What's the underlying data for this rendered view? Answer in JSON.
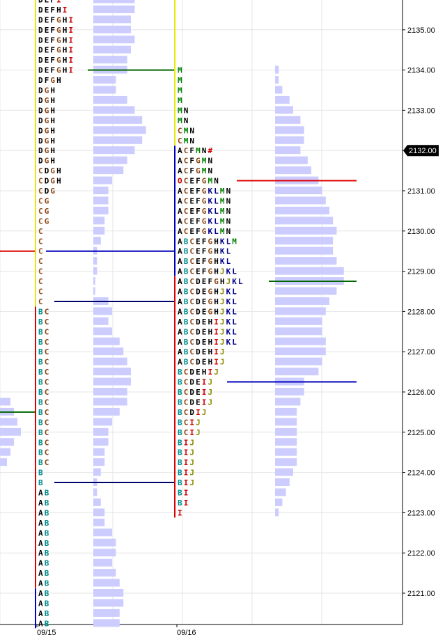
{
  "chart_data": {
    "type": "market-profile",
    "y_axis": {
      "ticks": [
        "2121.00",
        "2122.00",
        "2123.00",
        "2124.00",
        "2125.00",
        "2126.00",
        "2127.00",
        "2128.00",
        "2129.00",
        "2130.00",
        "2131.00",
        "2132.00",
        "2133.00",
        "2134.00",
        "2135.00"
      ],
      "tick_values": [
        2121,
        2122,
        2123,
        2124,
        2125,
        2126,
        2127,
        2128,
        2129,
        2130,
        2131,
        2132,
        2133,
        2134,
        2135
      ],
      "ylim": [
        2120.25,
        2136.0
      ],
      "tick_size": 0.25,
      "current_price_label": "2132.00",
      "current_price": 2132.0
    },
    "x_axis": {
      "dates": [
        "09/15",
        "09/16"
      ]
    },
    "grid": true,
    "colors": {
      "A": "#000000",
      "B": "#008b8b",
      "C": "#8b4513",
      "D": "#000000",
      "E": "#000000",
      "F": "#000000",
      "G": "#8b4513",
      "H": "#000000",
      "I": "#cc0000",
      "J": "#8b8b00",
      "K": "#00008b",
      "L": "#00008b",
      "M": "#008000",
      "N": "#000000",
      "O": "#cc0000",
      "#": "#cc0000",
      "value_area_red": "#dd0000",
      "value_area_blue": "#0000bb",
      "value_area_green": "#006600",
      "histogram": "#ccccff"
    },
    "sessions": [
      {
        "date": "09/15",
        "rows": [
          {
            "price": 2135.75,
            "letters": "DEFI"
          },
          {
            "price": 2135.5,
            "letters": "DEFHI"
          },
          {
            "price": 2135.25,
            "letters": "DEFGHI"
          },
          {
            "price": 2135.0,
            "letters": "DEFGHI"
          },
          {
            "price": 2134.75,
            "letters": "DEFGHI"
          },
          {
            "price": 2134.5,
            "letters": "DEFGHI"
          },
          {
            "price": 2134.25,
            "letters": "DEFGHI"
          },
          {
            "price": 2134.0,
            "letters": "DEFGHI"
          },
          {
            "price": 2133.75,
            "letters": "DFGH"
          },
          {
            "price": 2133.5,
            "letters": "DGH"
          },
          {
            "price": 2133.25,
            "letters": "DGH"
          },
          {
            "price": 2133.0,
            "letters": "DGH"
          },
          {
            "price": 2132.75,
            "letters": "DGH"
          },
          {
            "price": 2132.5,
            "letters": "DGH"
          },
          {
            "price": 2132.25,
            "letters": "DGH"
          },
          {
            "price": 2132.0,
            "letters": "DGH"
          },
          {
            "price": 2131.75,
            "letters": "DGH"
          },
          {
            "price": 2131.5,
            "letters": "CDGH"
          },
          {
            "price": 2131.25,
            "letters": "CDGH"
          },
          {
            "price": 2131.0,
            "letters": "CDG"
          },
          {
            "price": 2130.75,
            "letters": "CG"
          },
          {
            "price": 2130.5,
            "letters": "CG"
          },
          {
            "price": 2130.25,
            "letters": "CG"
          },
          {
            "price": 2130.0,
            "letters": "C"
          },
          {
            "price": 2129.75,
            "letters": "C"
          },
          {
            "price": 2129.5,
            "letters": "C"
          },
          {
            "price": 2129.25,
            "letters": "C"
          },
          {
            "price": 2129.0,
            "letters": "C"
          },
          {
            "price": 2128.75,
            "letters": "C"
          },
          {
            "price": 2128.5,
            "letters": "C"
          },
          {
            "price": 2128.25,
            "letters": "C"
          },
          {
            "price": 2128.0,
            "letters": "BC"
          },
          {
            "price": 2127.75,
            "letters": "BC"
          },
          {
            "price": 2127.5,
            "letters": "BC"
          },
          {
            "price": 2127.25,
            "letters": "BC"
          },
          {
            "price": 2127.0,
            "letters": "BC"
          },
          {
            "price": 2126.75,
            "letters": "BC"
          },
          {
            "price": 2126.5,
            "letters": "BC"
          },
          {
            "price": 2126.25,
            "letters": "BC"
          },
          {
            "price": 2126.0,
            "letters": "BC"
          },
          {
            "price": 2125.75,
            "letters": "BC"
          },
          {
            "price": 2125.5,
            "letters": "BC"
          },
          {
            "price": 2125.25,
            "letters": "BC"
          },
          {
            "price": 2125.0,
            "letters": "BC"
          },
          {
            "price": 2124.75,
            "letters": "BC"
          },
          {
            "price": 2124.5,
            "letters": "BC"
          },
          {
            "price": 2124.25,
            "letters": "BC"
          },
          {
            "price": 2124.0,
            "letters": "B"
          },
          {
            "price": 2123.75,
            "letters": "B"
          },
          {
            "price": 2123.5,
            "letters": "AB"
          },
          {
            "price": 2123.25,
            "letters": "AB"
          },
          {
            "price": 2123.0,
            "letters": "AB"
          },
          {
            "price": 2122.75,
            "letters": "AB"
          },
          {
            "price": 2122.5,
            "letters": "AB"
          },
          {
            "price": 2122.25,
            "letters": "AB"
          },
          {
            "price": 2122.0,
            "letters": "AB"
          },
          {
            "price": 2121.75,
            "letters": "AB"
          },
          {
            "price": 2121.5,
            "letters": "AB"
          },
          {
            "price": 2121.25,
            "letters": "AB"
          },
          {
            "price": 2121.0,
            "letters": "AB"
          },
          {
            "price": 2120.75,
            "letters": "AB"
          },
          {
            "price": 2120.5,
            "letters": "AB"
          },
          {
            "price": 2120.25,
            "letters": "AB"
          }
        ]
      },
      {
        "date": "09/16",
        "rows": [
          {
            "price": 2134.0,
            "letters": "M"
          },
          {
            "price": 2133.75,
            "letters": "M"
          },
          {
            "price": 2133.5,
            "letters": "M"
          },
          {
            "price": 2133.25,
            "letters": "M"
          },
          {
            "price": 2133.0,
            "letters": "MN"
          },
          {
            "price": 2132.75,
            "letters": "MN"
          },
          {
            "price": 2132.5,
            "letters": "CMN"
          },
          {
            "price": 2132.25,
            "letters": "CMN"
          },
          {
            "price": 2132.0,
            "letters": "ACFMN#"
          },
          {
            "price": 2131.75,
            "letters": "ACFGMN"
          },
          {
            "price": 2131.5,
            "letters": "ACFGMN"
          },
          {
            "price": 2131.25,
            "letters": "OCEFGMN"
          },
          {
            "price": 2131.0,
            "letters": "ACEFGKLMN"
          },
          {
            "price": 2130.75,
            "letters": "ACEFGKLMN"
          },
          {
            "price": 2130.5,
            "letters": "ACEFGKLMN"
          },
          {
            "price": 2130.25,
            "letters": "ACEFGKLMN"
          },
          {
            "price": 2130.0,
            "letters": "ACEFGKLMN"
          },
          {
            "price": 2129.75,
            "letters": "ABCEFGHKLM"
          },
          {
            "price": 2129.5,
            "letters": "ABCEFGHKL"
          },
          {
            "price": 2129.25,
            "letters": "ABCEFGHKL"
          },
          {
            "price": 2129.0,
            "letters": "ABCEFGHJKL"
          },
          {
            "price": 2128.75,
            "letters": "ABCDEFGHJKL"
          },
          {
            "price": 2128.5,
            "letters": "ABCDEGHJKL"
          },
          {
            "price": 2128.25,
            "letters": "ABCDEGHJKL"
          },
          {
            "price": 2128.0,
            "letters": "ABCDEGHJKL"
          },
          {
            "price": 2127.75,
            "letters": "ABCDEHIJKL"
          },
          {
            "price": 2127.5,
            "letters": "ABCDEHIJKL"
          },
          {
            "price": 2127.25,
            "letters": "ABCDEHIJKL"
          },
          {
            "price": 2127.0,
            "letters": "ABCDEHIJ"
          },
          {
            "price": 2126.75,
            "letters": "ABCDEHIJ"
          },
          {
            "price": 2126.5,
            "letters": "BCDEHIJ"
          },
          {
            "price": 2126.25,
            "letters": "BCDEIJ"
          },
          {
            "price": 2126.0,
            "letters": "BCDEIJ"
          },
          {
            "price": 2125.75,
            "letters": "BCDEIJ"
          },
          {
            "price": 2125.5,
            "letters": "BCDIJ"
          },
          {
            "price": 2125.25,
            "letters": "BCIJ"
          },
          {
            "price": 2125.0,
            "letters": "BCIJ"
          },
          {
            "price": 2124.75,
            "letters": "BIJ"
          },
          {
            "price": 2124.5,
            "letters": "BIJ"
          },
          {
            "price": 2124.25,
            "letters": "BIJ"
          },
          {
            "price": 2124.0,
            "letters": "BIJ"
          },
          {
            "price": 2123.75,
            "letters": "BIJ"
          },
          {
            "price": 2123.5,
            "letters": "BI"
          },
          {
            "price": 2123.25,
            "letters": "BI"
          },
          {
            "price": 2123.0,
            "letters": "I"
          }
        ]
      }
    ],
    "histogram_0916": [
      {
        "price": 2134.0,
        "tpo": 1
      },
      {
        "price": 2133.75,
        "tpo": 1
      },
      {
        "price": 2133.5,
        "tpo": 2
      },
      {
        "price": 2133.25,
        "tpo": 4
      },
      {
        "price": 2133.0,
        "tpo": 5
      },
      {
        "price": 2132.75,
        "tpo": 7
      },
      {
        "price": 2132.5,
        "tpo": 8
      },
      {
        "price": 2132.25,
        "tpo": 8
      },
      {
        "price": 2132.0,
        "tpo": 7
      },
      {
        "price": 2131.75,
        "tpo": 9
      },
      {
        "price": 2131.5,
        "tpo": 10
      },
      {
        "price": 2131.25,
        "tpo": 12
      },
      {
        "price": 2131.0,
        "tpo": 13
      },
      {
        "price": 2130.75,
        "tpo": 14
      },
      {
        "price": 2130.5,
        "tpo": 15
      },
      {
        "price": 2130.25,
        "tpo": 16
      },
      {
        "price": 2130.0,
        "tpo": 17
      },
      {
        "price": 2129.75,
        "tpo": 16
      },
      {
        "price": 2129.5,
        "tpo": 16
      },
      {
        "price": 2129.25,
        "tpo": 17
      },
      {
        "price": 2129.0,
        "tpo": 19
      },
      {
        "price": 2128.75,
        "tpo": 19
      },
      {
        "price": 2128.5,
        "tpo": 17
      },
      {
        "price": 2128.25,
        "tpo": 15
      },
      {
        "price": 2128.0,
        "tpo": 14
      },
      {
        "price": 2127.75,
        "tpo": 13
      },
      {
        "price": 2127.5,
        "tpo": 13
      },
      {
        "price": 2127.25,
        "tpo": 14
      },
      {
        "price": 2127.0,
        "tpo": 14
      },
      {
        "price": 2126.75,
        "tpo": 13
      },
      {
        "price": 2126.5,
        "tpo": 12
      },
      {
        "price": 2126.25,
        "tpo": 8
      },
      {
        "price": 2126.0,
        "tpo": 8
      },
      {
        "price": 2125.75,
        "tpo": 7
      },
      {
        "price": 2125.5,
        "tpo": 6
      },
      {
        "price": 2125.25,
        "tpo": 6
      },
      {
        "price": 2125.0,
        "tpo": 6
      },
      {
        "price": 2124.75,
        "tpo": 6
      },
      {
        "price": 2124.5,
        "tpo": 6
      },
      {
        "price": 2124.25,
        "tpo": 6
      },
      {
        "price": 2124.0,
        "tpo": 5
      },
      {
        "price": 2123.75,
        "tpo": 4
      },
      {
        "price": 2123.5,
        "tpo": 3
      },
      {
        "price": 2123.25,
        "tpo": 2
      },
      {
        "price": 2123.0,
        "tpo": 1
      }
    ],
    "histogram_0915": [
      {
        "price": 2135.75,
        "tpo": 11
      },
      {
        "price": 2135.5,
        "tpo": 11
      },
      {
        "price": 2135.25,
        "tpo": 10
      },
      {
        "price": 2135.0,
        "tpo": 10
      },
      {
        "price": 2134.75,
        "tpo": 11
      },
      {
        "price": 2134.5,
        "tpo": 10
      },
      {
        "price": 2134.25,
        "tpo": 9
      },
      {
        "price": 2134.0,
        "tpo": 9
      },
      {
        "price": 2133.75,
        "tpo": 6
      },
      {
        "price": 2133.5,
        "tpo": 6
      },
      {
        "price": 2133.25,
        "tpo": 9
      },
      {
        "price": 2133.0,
        "tpo": 11
      },
      {
        "price": 2132.75,
        "tpo": 13
      },
      {
        "price": 2132.5,
        "tpo": 14
      },
      {
        "price": 2132.25,
        "tpo": 13
      },
      {
        "price": 2132.0,
        "tpo": 11
      },
      {
        "price": 2131.75,
        "tpo": 9
      },
      {
        "price": 2131.5,
        "tpo": 8
      },
      {
        "price": 2131.25,
        "tpo": 5
      },
      {
        "price": 2131.0,
        "tpo": 4
      },
      {
        "price": 2130.75,
        "tpo": 4
      },
      {
        "price": 2130.5,
        "tpo": 4
      },
      {
        "price": 2130.25,
        "tpo": 3
      },
      {
        "price": 2130.0,
        "tpo": 3
      },
      {
        "price": 2129.75,
        "tpo": 2
      },
      {
        "price": 2129.5,
        "tpo": 1
      },
      {
        "price": 2129.25,
        "tpo": 1
      },
      {
        "price": 2129.0,
        "tpo": 1
      },
      {
        "price": 2128.75,
        "tpo": 0.5
      },
      {
        "price": 2128.5,
        "tpo": 0.5
      },
      {
        "price": 2128.25,
        "tpo": 4
      },
      {
        "price": 2128.0,
        "tpo": 5
      },
      {
        "price": 2127.75,
        "tpo": 4
      },
      {
        "price": 2127.5,
        "tpo": 5
      },
      {
        "price": 2127.25,
        "tpo": 7
      },
      {
        "price": 2127.0,
        "tpo": 8
      },
      {
        "price": 2126.75,
        "tpo": 9
      },
      {
        "price": 2126.5,
        "tpo": 10
      },
      {
        "price": 2126.25,
        "tpo": 10
      },
      {
        "price": 2126.0,
        "tpo": 9
      },
      {
        "price": 2125.75,
        "tpo": 9
      },
      {
        "price": 2125.5,
        "tpo": 7
      },
      {
        "price": 2125.25,
        "tpo": 5
      },
      {
        "price": 2125.0,
        "tpo": 4
      },
      {
        "price": 2124.75,
        "tpo": 4
      },
      {
        "price": 2124.5,
        "tpo": 3
      },
      {
        "price": 2124.25,
        "tpo": 3
      },
      {
        "price": 2124.0,
        "tpo": 2
      },
      {
        "price": 2123.75,
        "tpo": 1
      },
      {
        "price": 2123.5,
        "tpo": 1
      },
      {
        "price": 2123.25,
        "tpo": 2
      },
      {
        "price": 2123.0,
        "tpo": 3
      },
      {
        "price": 2122.75,
        "tpo": 3
      },
      {
        "price": 2122.5,
        "tpo": 5
      },
      {
        "price": 2122.25,
        "tpo": 6
      },
      {
        "price": 2122.0,
        "tpo": 6
      },
      {
        "price": 2121.75,
        "tpo": 5
      },
      {
        "price": 2121.5,
        "tpo": 6
      },
      {
        "price": 2121.25,
        "tpo": 7
      },
      {
        "price": 2121.0,
        "tpo": 8
      },
      {
        "price": 2120.75,
        "tpo": 8
      },
      {
        "price": 2120.5,
        "tpo": 7
      },
      {
        "price": 2120.25,
        "tpo": 7
      }
    ],
    "histogram_prev": [
      {
        "price": 2125.75,
        "tpo": 3
      },
      {
        "price": 2125.5,
        "tpo": 4
      },
      {
        "price": 2125.25,
        "tpo": 5
      },
      {
        "price": 2125.0,
        "tpo": 6
      },
      {
        "price": 2124.75,
        "tpo": 4
      },
      {
        "price": 2124.5,
        "tpo": 3
      },
      {
        "price": 2124.25,
        "tpo": 2
      }
    ],
    "reference_lines": [
      {
        "session": "09/15",
        "price": 2134.0,
        "color": "green"
      },
      {
        "session": "09/15",
        "price": 2129.5,
        "color": "blue"
      },
      {
        "session": "09/15",
        "price": 2128.25,
        "color": "navy"
      },
      {
        "session": "09/15",
        "price": 2123.75,
        "color": "navy"
      },
      {
        "session": "prev",
        "price": 2129.5,
        "color": "red"
      },
      {
        "session": "prev",
        "price": 2125.5,
        "color": "green"
      },
      {
        "session": "09/16",
        "price": 2131.25,
        "color": "red"
      },
      {
        "session": "09/16",
        "price": 2128.75,
        "color": "green"
      },
      {
        "session": "09/16",
        "price": 2126.25,
        "color": "blue"
      }
    ]
  }
}
